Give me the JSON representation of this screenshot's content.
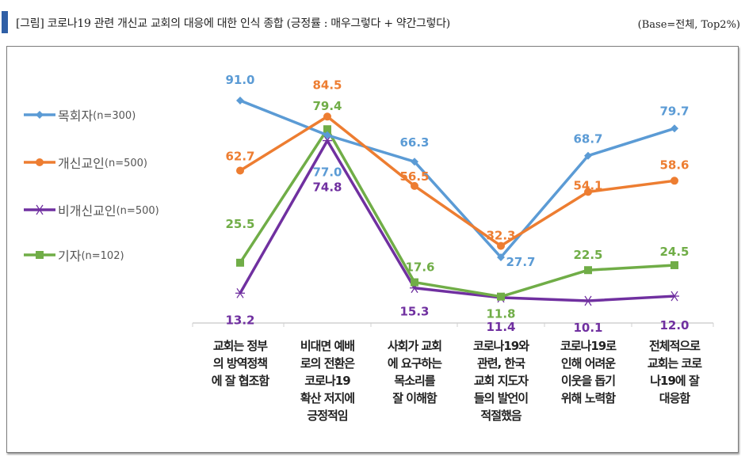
{
  "header": {
    "title": "[그림] 코로나19 관련 개신교 교회의 대응에 대한 인식 종합 (긍정률 : 매우그렇다 + 약간그렇다)",
    "base_note": "(Base=전체, Top2%)"
  },
  "chart_data": {
    "type": "line",
    "title": "",
    "xlabel": "",
    "ylabel": "",
    "ylim": [
      0,
      100
    ],
    "grid": false,
    "legend_position": "left",
    "categories": [
      "교회는 정부\n의 방역정책\n에 잘 협조함",
      "비대면 예배\n로의 전환은\n코로나19\n확산 저지에\n긍정적임",
      "사회가 교회\n에 요구하는\n목소리를\n잘 이해함",
      "코로나19와\n관련, 한국\n교회 지도자\n들의 발언이\n적절했음",
      "코로나19로\n인해 어려운\n이웃을 돕기\n위해 노력함",
      "전체적으로\n교회는 코로\n나19에 잘\n대응함"
    ],
    "series": [
      {
        "name": "목회자",
        "n": "(n=300)",
        "color": "#5b9bd5",
        "marker": "diamond",
        "values": [
          91.0,
          77.0,
          66.3,
          27.7,
          68.7,
          79.7
        ]
      },
      {
        "name": "개신교인",
        "n": "(n=500)",
        "color": "#ed7d31",
        "marker": "circle",
        "values": [
          62.7,
          84.5,
          56.5,
          32.3,
          54.1,
          58.6
        ]
      },
      {
        "name": "비개신교인",
        "n": "(n=500)",
        "color": "#7030a0",
        "marker": "star",
        "values": [
          13.2,
          74.8,
          15.3,
          11.4,
          10.1,
          12.0
        ]
      },
      {
        "name": "기자",
        "n": "(n=102)",
        "color": "#70ad47",
        "marker": "square",
        "values": [
          25.5,
          79.4,
          17.6,
          11.8,
          22.5,
          24.5
        ]
      }
    ]
  }
}
